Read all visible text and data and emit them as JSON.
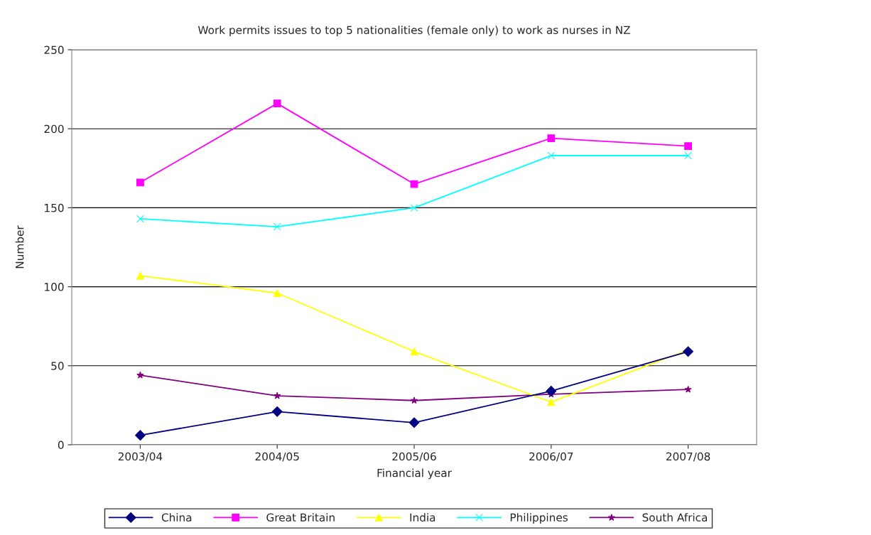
{
  "chart_data": {
    "type": "line",
    "title": "Work permits issues to top 5 nationalities (female only) to work as nurses in NZ",
    "xlabel": "Financial year",
    "ylabel": "Number",
    "categories": [
      "2003/04",
      "2004/05",
      "2005/06",
      "2006/07",
      "2007/08"
    ],
    "series": [
      {
        "name": "China",
        "color": "#000080",
        "marker": "diamond",
        "values": [
          6,
          21,
          14,
          34,
          59
        ]
      },
      {
        "name": "Great Britain",
        "color": "#ff00ff",
        "marker": "square",
        "values": [
          166,
          216,
          165,
          194,
          189
        ]
      },
      {
        "name": "India",
        "color": "#ffff00",
        "marker": "triangle",
        "values": [
          107,
          96,
          59,
          27,
          60
        ]
      },
      {
        "name": "Philippines",
        "color": "#00ffff",
        "marker": "cross",
        "values": [
          143,
          138,
          150,
          183,
          183
        ]
      },
      {
        "name": "South Africa",
        "color": "#800080",
        "marker": "star",
        "values": [
          44,
          31,
          28,
          32,
          35
        ]
      }
    ],
    "ylim": [
      0,
      250
    ],
    "yticks": [
      0,
      50,
      100,
      150,
      200,
      250
    ],
    "grid": "y",
    "legend": "bottom"
  }
}
